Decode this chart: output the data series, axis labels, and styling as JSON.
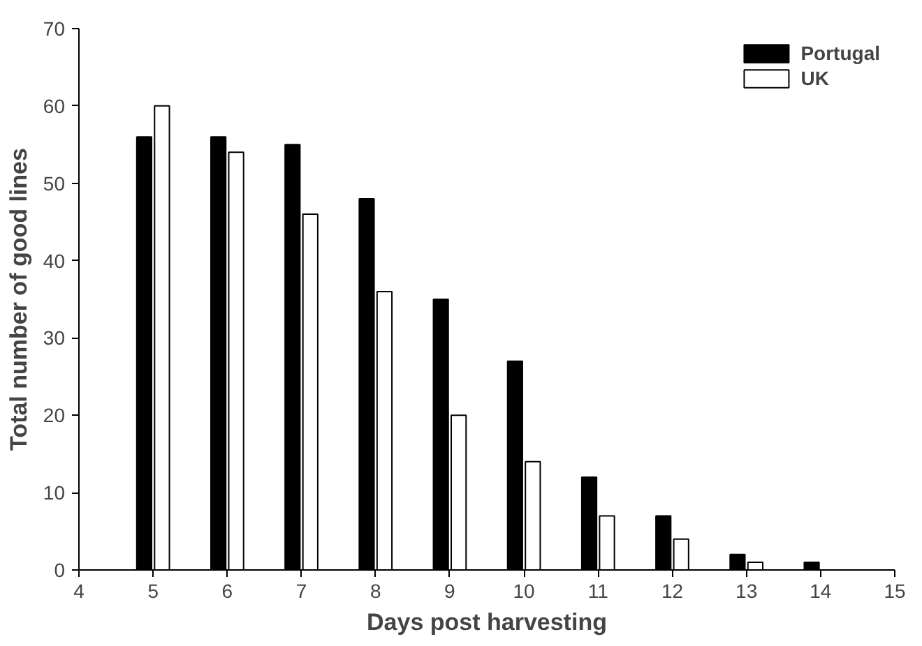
{
  "chart_data": {
    "type": "bar",
    "xlabel": "Days post harvesting",
    "ylabel": "Total number of good lines",
    "x": [
      5,
      6,
      7,
      8,
      9,
      10,
      11,
      12,
      13,
      14
    ],
    "series": [
      {
        "name": "Portugal",
        "color": "#000000",
        "values": [
          56,
          56,
          55,
          48,
          35,
          27,
          12,
          7,
          2,
          1
        ]
      },
      {
        "name": "UK",
        "color": "#ffffff",
        "values": [
          60,
          54,
          46,
          36,
          20,
          14,
          7,
          4,
          1,
          null
        ]
      }
    ],
    "xlim": [
      4,
      15
    ],
    "xticks": [
      4,
      5,
      6,
      7,
      8,
      9,
      10,
      11,
      12,
      13,
      14,
      15
    ],
    "ylim": [
      0,
      70
    ],
    "yticks": [
      0,
      10,
      20,
      30,
      40,
      50,
      60,
      70
    ],
    "grid": false,
    "legend": "top right"
  }
}
